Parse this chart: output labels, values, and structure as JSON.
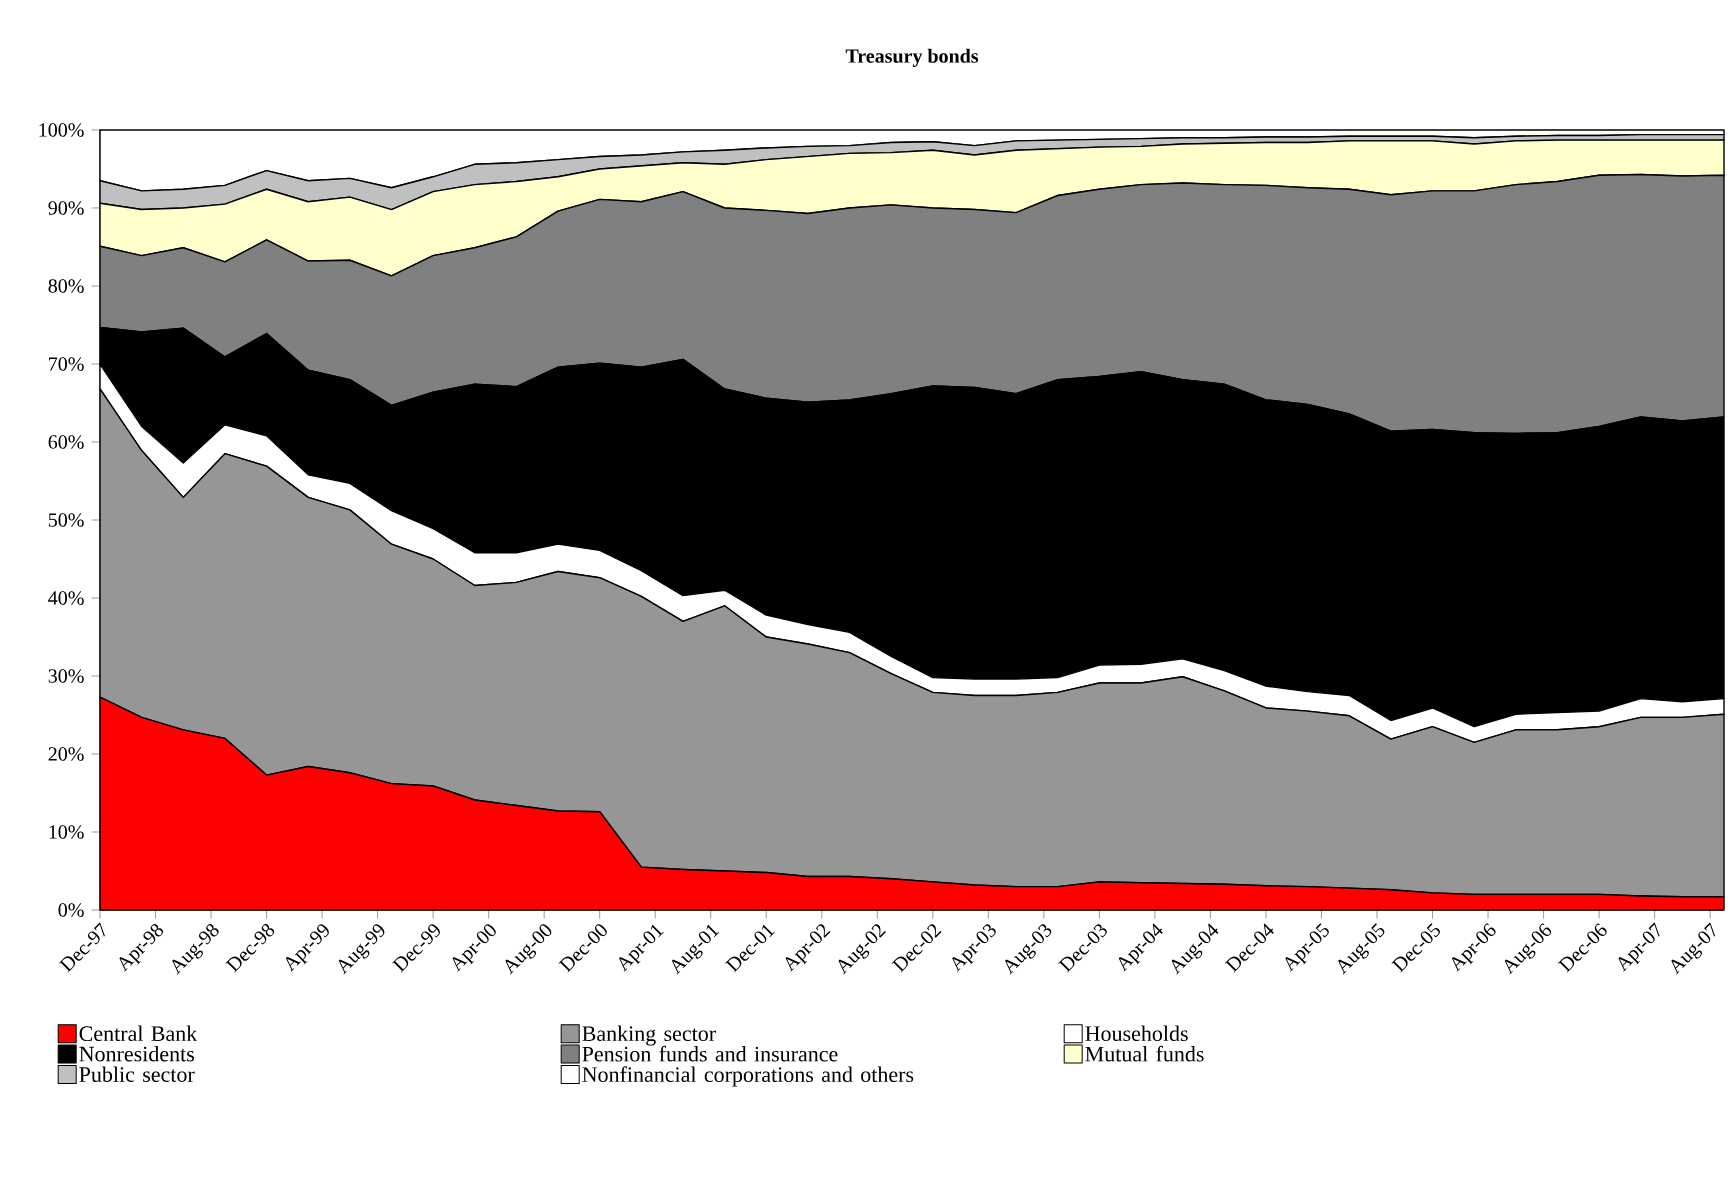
{
  "chart_data": {
    "type": "area",
    "title": "Treasury bonds",
    "stacked": true,
    "legend": "bottom",
    "x": [
      "1997-12",
      "1998-03",
      "1998-06",
      "1998-09",
      "1998-12",
      "1999-03",
      "1999-06",
      "1999-09",
      "1999-12",
      "2000-03",
      "2000-06",
      "2000-09",
      "2000-12",
      "2001-03",
      "2001-06",
      "2001-09",
      "2001-12",
      "2002-03",
      "2002-06",
      "2002-09",
      "2002-12",
      "2003-03",
      "2003-06",
      "2003-09",
      "2003-12",
      "2004-03",
      "2004-06",
      "2004-09",
      "2004-12",
      "2005-03",
      "2005-06",
      "2005-09",
      "2005-12",
      "2006-03",
      "2006-06",
      "2006-09",
      "2006-12",
      "2007-03",
      "2007-06",
      "2007-09"
    ],
    "xlim": [
      "1997-12",
      "2007-09"
    ],
    "xticks": [
      {
        "value": "1997-12",
        "label": "Dec-97"
      },
      {
        "value": "1998-04",
        "label": "Apr-98"
      },
      {
        "value": "1998-08",
        "label": "Aug-98"
      },
      {
        "value": "1998-12",
        "label": "Dec-98"
      },
      {
        "value": "1999-04",
        "label": "Apr-99"
      },
      {
        "value": "1999-08",
        "label": "Aug-99"
      },
      {
        "value": "1999-12",
        "label": "Dec-99"
      },
      {
        "value": "2000-04",
        "label": "Apr-00"
      },
      {
        "value": "2000-08",
        "label": "Aug-00"
      },
      {
        "value": "2000-12",
        "label": "Dec-00"
      },
      {
        "value": "2001-04",
        "label": "Apr-01"
      },
      {
        "value": "2001-08",
        "label": "Aug-01"
      },
      {
        "value": "2001-12",
        "label": "Dec-01"
      },
      {
        "value": "2002-04",
        "label": "Apr-02"
      },
      {
        "value": "2002-08",
        "label": "Aug-02"
      },
      {
        "value": "2002-12",
        "label": "Dec-02"
      },
      {
        "value": "2003-04",
        "label": "Apr-03"
      },
      {
        "value": "2003-08",
        "label": "Aug-03"
      },
      {
        "value": "2003-12",
        "label": "Dec-03"
      },
      {
        "value": "2004-04",
        "label": "Apr-04"
      },
      {
        "value": "2004-08",
        "label": "Aug-04"
      },
      {
        "value": "2004-12",
        "label": "Dec-04"
      },
      {
        "value": "2005-04",
        "label": "Apr-05"
      },
      {
        "value": "2005-08",
        "label": "Aug-05"
      },
      {
        "value": "2005-12",
        "label": "Dec-05"
      },
      {
        "value": "2006-04",
        "label": "Apr-06"
      },
      {
        "value": "2006-08",
        "label": "Aug-06"
      },
      {
        "value": "2006-12",
        "label": "Dec-06"
      },
      {
        "value": "2007-04",
        "label": "Apr-07"
      },
      {
        "value": "2007-08",
        "label": "Aug-07"
      }
    ],
    "ylim": [
      0,
      100
    ],
    "yticks": [
      {
        "value": 0,
        "label": "0%"
      },
      {
        "value": 10,
        "label": "10%"
      },
      {
        "value": 20,
        "label": "20%"
      },
      {
        "value": 30,
        "label": "30%"
      },
      {
        "value": 40,
        "label": "40%"
      },
      {
        "value": 50,
        "label": "50%"
      },
      {
        "value": 60,
        "label": "60%"
      },
      {
        "value": 70,
        "label": "70%"
      },
      {
        "value": 80,
        "label": "80%"
      },
      {
        "value": 90,
        "label": "90%"
      },
      {
        "value": 100,
        "label": "100%"
      }
    ],
    "series": [
      {
        "name": "Central Bank",
        "color": "#ff0000",
        "values": [
          27.3,
          24.7,
          23.1,
          22.0,
          17.3,
          18.4,
          17.6,
          16.2,
          15.9,
          14.1,
          13.4,
          12.7,
          12.6,
          5.5,
          5.2,
          5.0,
          4.8,
          4.3,
          4.3,
          4.0,
          3.6,
          3.2,
          3.0,
          3.0,
          3.6,
          3.5,
          3.4,
          3.3,
          3.1,
          3.0,
          2.8,
          2.6,
          2.2,
          2.0,
          2.0,
          2.0,
          2.0,
          1.8,
          1.7,
          1.7
        ]
      },
      {
        "name": "Banking sector",
        "color": "#969696",
        "values": [
          39.5,
          34.2,
          29.8,
          36.5,
          39.6,
          34.5,
          33.7,
          30.7,
          29.1,
          27.5,
          28.6,
          30.7,
          30.0,
          34.7,
          31.8,
          34.0,
          30.2,
          29.8,
          28.7,
          26.3,
          24.3,
          24.3,
          24.5,
          24.9,
          25.5,
          25.6,
          26.5,
          24.8,
          22.8,
          22.5,
          22.1,
          19.3,
          21.3,
          19.5,
          21.1,
          21.1,
          21.5,
          22.9,
          23.0,
          23.4
        ]
      },
      {
        "name": "Households",
        "color": "#ffffff",
        "values": [
          3.2,
          3.1,
          4.4,
          3.7,
          3.9,
          2.9,
          3.4,
          4.3,
          3.9,
          4.2,
          3.8,
          3.5,
          3.5,
          3.3,
          3.3,
          2.0,
          2.8,
          2.5,
          2.6,
          2.2,
          1.9,
          2.1,
          2.1,
          1.9,
          2.3,
          2.4,
          2.3,
          2.6,
          2.8,
          2.5,
          2.6,
          2.4,
          2.4,
          2.0,
          2.0,
          2.2,
          2.0,
          2.4,
          2.0,
          2.0
        ]
      },
      {
        "name": "Nonresidents",
        "color": "#000000",
        "values": [
          4.7,
          12.1,
          17.3,
          8.7,
          13.1,
          13.4,
          13.3,
          13.5,
          17.5,
          21.6,
          21.3,
          22.7,
          24.0,
          26.1,
          30.3,
          25.8,
          27.8,
          28.5,
          29.8,
          33.7,
          37.4,
          37.4,
          36.6,
          38.2,
          37.0,
          37.5,
          35.8,
          36.7,
          36.7,
          36.8,
          36.1,
          37.1,
          35.7,
          37.7,
          36.0,
          35.9,
          36.5,
          36.1,
          36.0,
          36.1
        ]
      },
      {
        "name": "Pension funds and insurance",
        "color": "#808080",
        "values": [
          10.4,
          9.8,
          10.3,
          12.2,
          12.0,
          14.0,
          15.3,
          16.6,
          17.5,
          17.5,
          19.2,
          20.0,
          21.0,
          21.2,
          21.5,
          23.2,
          24.1,
          24.2,
          24.6,
          24.2,
          22.8,
          22.8,
          23.2,
          23.6,
          24.0,
          24.0,
          25.2,
          25.6,
          27.5,
          27.8,
          28.8,
          30.3,
          30.6,
          31.0,
          31.9,
          32.2,
          32.2,
          31.1,
          31.4,
          31.0
        ]
      },
      {
        "name": "Mutual funds",
        "color": "#ffffcc",
        "values": [
          5.5,
          5.9,
          5.1,
          7.4,
          6.5,
          7.6,
          8.1,
          8.5,
          8.2,
          8.1,
          7.1,
          4.4,
          3.9,
          4.6,
          3.7,
          5.6,
          6.5,
          7.3,
          7.0,
          6.7,
          7.4,
          7.0,
          8.0,
          6.0,
          5.4,
          4.9,
          5.0,
          5.3,
          5.5,
          5.8,
          6.2,
          6.9,
          6.4,
          6.0,
          5.6,
          5.3,
          4.5,
          4.4,
          4.6,
          4.5
        ]
      },
      {
        "name": "Public sector",
        "color": "#c0c0c0",
        "values": [
          2.9,
          2.4,
          2.4,
          2.4,
          2.4,
          2.7,
          2.4,
          2.8,
          1.9,
          2.6,
          2.4,
          2.2,
          1.6,
          1.4,
          1.4,
          1.8,
          1.5,
          1.3,
          1.0,
          1.3,
          1.1,
          1.2,
          1.2,
          1.1,
          1.0,
          1.0,
          0.8,
          0.7,
          0.7,
          0.7,
          0.6,
          0.6,
          0.6,
          0.8,
          0.6,
          0.6,
          0.6,
          0.7,
          0.7,
          0.7
        ]
      },
      {
        "name": "Nonfinancial corporations and others",
        "color": "#ffffff",
        "values": [
          6.5,
          7.8,
          7.6,
          7.1,
          5.2,
          6.5,
          6.2,
          7.4,
          6.0,
          4.4,
          4.2,
          3.8,
          3.4,
          3.2,
          2.8,
          2.6,
          2.3,
          2.1,
          2.0,
          1.6,
          1.5,
          2.0,
          1.4,
          1.3,
          1.2,
          1.1,
          1.0,
          1.0,
          0.9,
          0.9,
          0.8,
          0.8,
          0.8,
          1.0,
          0.8,
          0.7,
          0.7,
          0.6,
          0.6,
          0.6
        ]
      }
    ]
  }
}
